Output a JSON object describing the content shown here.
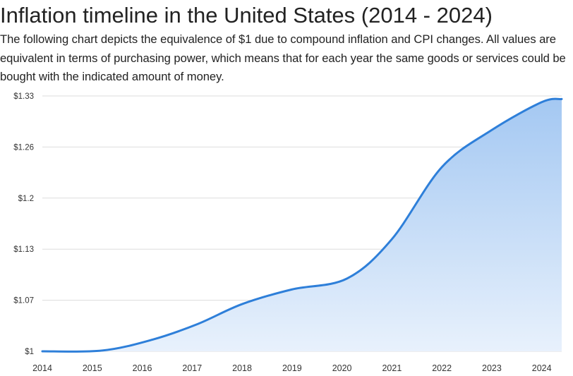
{
  "title": "Inflation timeline in the United States (2014 - 2024)",
  "description": "The following chart depicts the equivalence of $1 due to compound inflation and CPI changes. All values are equivalent in terms of purchasing power, which means that for each year the same goods or services could be bought with the indicated amount of money.",
  "colors": {
    "line": "#2e7fd9",
    "area_top": "#a4c8f2",
    "area_bottom": "#e8f1fc",
    "grid": "#dddddd"
  },
  "chart_data": {
    "type": "area",
    "title": "",
    "xlabel": "",
    "ylabel": "",
    "x": [
      2014,
      2015,
      2016,
      2017,
      2018,
      2019,
      2020,
      2021,
      2022,
      2023,
      2024
    ],
    "x_tick_labels": [
      "2014",
      "2015",
      "2016",
      "2017",
      "2018",
      "2019",
      "2020",
      "2021",
      "2022",
      "2023",
      "2024"
    ],
    "y_tick_labels": [
      "$1",
      "$1.07",
      "$1.13",
      "$1.2",
      "$1.26",
      "$1.33"
    ],
    "y_tick_values": [
      1.0,
      1.066,
      1.132,
      1.198,
      1.264,
      1.33
    ],
    "ylim": [
      1.0,
      1.33
    ],
    "grid": true,
    "legend": "none",
    "series": [
      {
        "x": [
          2014.0,
          2015.2,
          2016.2,
          2017.1,
          2018.0,
          2019.0,
          2020.1,
          2021.0,
          2022.0,
          2023.0,
          2024.0,
          2024.4
        ],
        "values": [
          1.0,
          1.001,
          1.015,
          1.035,
          1.061,
          1.08,
          1.094,
          1.145,
          1.238,
          1.286,
          1.322,
          1.326
        ]
      }
    ]
  }
}
